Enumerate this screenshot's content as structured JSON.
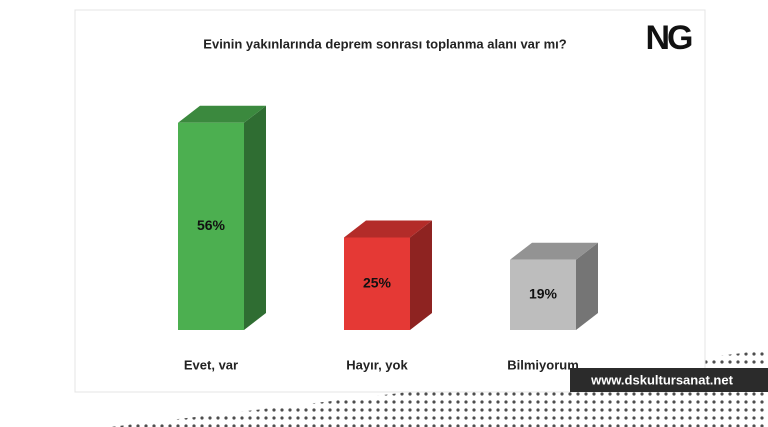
{
  "chart_data": {
    "type": "bar3d",
    "title": "Evinin yakınlarında deprem sonrası toplanma alanı var mı?",
    "logo": "NG",
    "watermark": "www.dskultursanat.net",
    "categories": [
      "Evet, var",
      "Hayır, yok",
      "Bilmiyorum"
    ],
    "values": [
      56,
      25,
      19
    ],
    "value_labels": [
      "56%",
      "25%",
      "19%"
    ],
    "colors": [
      "#4caf50",
      "#e53935",
      "#bdbdbd"
    ]
  }
}
